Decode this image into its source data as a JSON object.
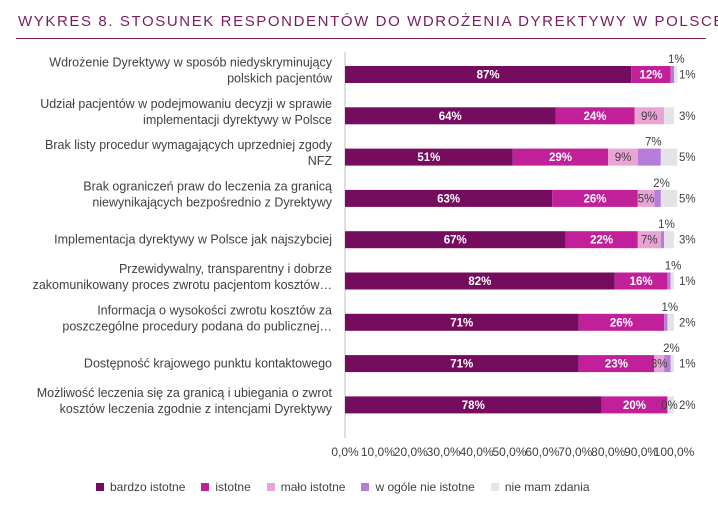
{
  "title": "WYKRES 8. STOSUNEK RESPONDENTÓW DO WDROŻENIA DYREKTYWY W POLSCE",
  "colors": {
    "title": "#7a1d5c",
    "series": [
      "#750c5d",
      "#c21f9b",
      "#e9a3d4",
      "#b67cd9",
      "#e3e3e8"
    ]
  },
  "chart_data": {
    "type": "bar",
    "orientation": "horizontal",
    "stacked": true,
    "title": "WYKRES 8. STOSUNEK RESPONDENTÓW DO WDROŻENIA DYREKTYWY W POLSCE",
    "xlim": [
      0,
      100
    ],
    "xticks": [
      "0,0%",
      "10,0%",
      "20,0%",
      "30,0%",
      "40,0%",
      "50,0%",
      "60,0%",
      "70,0%",
      "80,0%",
      "90,0%",
      "100,0%"
    ],
    "legend_position": "bottom",
    "categories": [
      [
        "Wdrożenie Dyrektywy w sposób niedyskryminujący",
        "polskich pacjentów"
      ],
      [
        "Udział pacjentów w podejmowaniu decyzji w sprawie",
        "implementacji dyrektywy w Polsce"
      ],
      [
        "Brak listy procedur wymagających uprzedniej zgody",
        "NFZ"
      ],
      [
        "Brak ograniczeń praw do leczenia za granicą",
        "niewynikających bezpośrednio z Dyrektywy"
      ],
      [
        "Implementacja dyrektywy w Polsce jak najszybciej"
      ],
      [
        "Przewidywalny, transparentny i dobrze",
        "zakomunikowany proces zwrotu pacjentom kosztów…"
      ],
      [
        "Informacja o wysokości zwrotu kosztów za",
        "poszczególne procedury podana do publicznej…"
      ],
      [
        "Dostępność krajowego punktu kontaktowego"
      ],
      [
        "Możliwość leczenia się za granicą i ubiegania o zwrot",
        "kosztów leczenia zgodnie z intencjami Dyrektywy"
      ]
    ],
    "series": [
      {
        "name": "bardzo istotne",
        "values": [
          87,
          64,
          51,
          63,
          67,
          82,
          71,
          71,
          78
        ]
      },
      {
        "name": "istotne",
        "values": [
          12,
          24,
          29,
          26,
          22,
          16,
          26,
          23,
          20
        ]
      },
      {
        "name": "mało istotne",
        "values": [
          0,
          9,
          9,
          5,
          7,
          0,
          0,
          3,
          0
        ]
      },
      {
        "name": "w ogóle nie istotne",
        "values": [
          1,
          0,
          7,
          2,
          1,
          1,
          1,
          2,
          0
        ]
      },
      {
        "name": "nie mam zdania",
        "values": [
          1,
          3,
          5,
          5,
          3,
          1,
          2,
          1,
          2
        ]
      }
    ],
    "value_labels": [
      [
        "87%",
        "12%",
        "",
        "1%",
        "1%"
      ],
      [
        "64%",
        "24%",
        "9%",
        "",
        "3%"
      ],
      [
        "51%",
        "29%",
        "9%",
        "7%",
        "5%"
      ],
      [
        "63%",
        "26%",
        "5%",
        "2%",
        "5%"
      ],
      [
        "67%",
        "22%",
        "7%",
        "1%",
        "3%"
      ],
      [
        "82%",
        "16%",
        "",
        "1%",
        "1%"
      ],
      [
        "71%",
        "26%",
        "",
        "1%",
        "2%"
      ],
      [
        "71%",
        "23%",
        "3%",
        "2%",
        "1%"
      ],
      [
        "78%",
        "20%",
        "0%",
        "",
        "2%"
      ]
    ]
  }
}
